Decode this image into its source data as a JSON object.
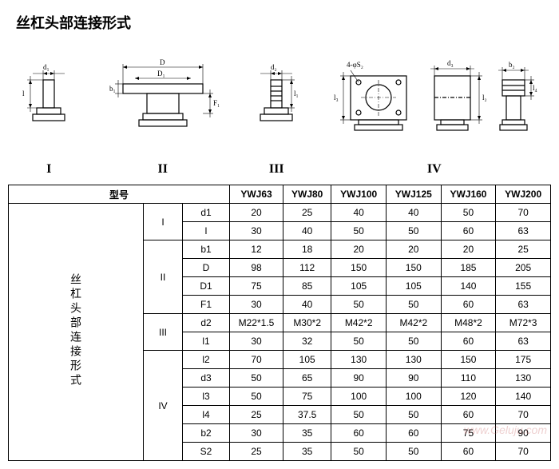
{
  "title": "丝杠头部连接形式",
  "side_label": "丝杠头部连接形式",
  "header_model": "型号",
  "diagram_labels": {
    "d1": "I",
    "d2": "II",
    "d3": "III",
    "d4": "IV"
  },
  "dim_labels": {
    "d1": "d₁",
    "l": "l",
    "D": "D",
    "D1": "D₁",
    "b1": "b₁",
    "F1": "F₁",
    "d2": "d₂",
    "l1": "l₁",
    "holes": "4-φS₂",
    "d3": "d₃",
    "l2": "l₂",
    "l3": "l₃",
    "b2": "b₂",
    "l4": "l₄"
  },
  "models": [
    "YWJ63",
    "YWJ80",
    "YWJ100",
    "YWJ125",
    "YWJ160",
    "YWJ200"
  ],
  "groups": [
    {
      "group": "I",
      "rows": [
        {
          "param": "d1",
          "vals": [
            "20",
            "25",
            "40",
            "40",
            "50",
            "70"
          ]
        },
        {
          "param": "l",
          "vals": [
            "30",
            "40",
            "50",
            "50",
            "60",
            "63"
          ]
        }
      ]
    },
    {
      "group": "II",
      "rows": [
        {
          "param": "b1",
          "vals": [
            "12",
            "18",
            "20",
            "20",
            "20",
            "25"
          ]
        },
        {
          "param": "D",
          "vals": [
            "98",
            "112",
            "150",
            "150",
            "185",
            "205"
          ]
        },
        {
          "param": "D1",
          "vals": [
            "75",
            "85",
            "105",
            "105",
            "140",
            "155"
          ]
        },
        {
          "param": "F1",
          "vals": [
            "30",
            "40",
            "50",
            "50",
            "60",
            "63"
          ]
        }
      ]
    },
    {
      "group": "III",
      "rows": [
        {
          "param": "d2",
          "vals": [
            "M22*1.5",
            "M30*2",
            "M42*2",
            "M42*2",
            "M48*2",
            "M72*3"
          ]
        },
        {
          "param": "l1",
          "vals": [
            "30",
            "32",
            "50",
            "50",
            "60",
            "63"
          ]
        }
      ]
    },
    {
      "group": "IV",
      "rows": [
        {
          "param": "l2",
          "vals": [
            "70",
            "105",
            "130",
            "130",
            "150",
            "175"
          ]
        },
        {
          "param": "d3",
          "vals": [
            "50",
            "65",
            "90",
            "90",
            "110",
            "130"
          ]
        },
        {
          "param": "l3",
          "vals": [
            "50",
            "75",
            "100",
            "100",
            "120",
            "140"
          ]
        },
        {
          "param": "l4",
          "vals": [
            "25",
            "37.5",
            "50",
            "50",
            "60",
            "70"
          ]
        },
        {
          "param": "b2",
          "vals": [
            "30",
            "35",
            "60",
            "60",
            "75",
            "90"
          ]
        },
        {
          "param": "S2",
          "vals": [
            "25",
            "35",
            "50",
            "50",
            "60",
            "70"
          ]
        }
      ]
    }
  ],
  "watermark": "www.Geluju.com"
}
